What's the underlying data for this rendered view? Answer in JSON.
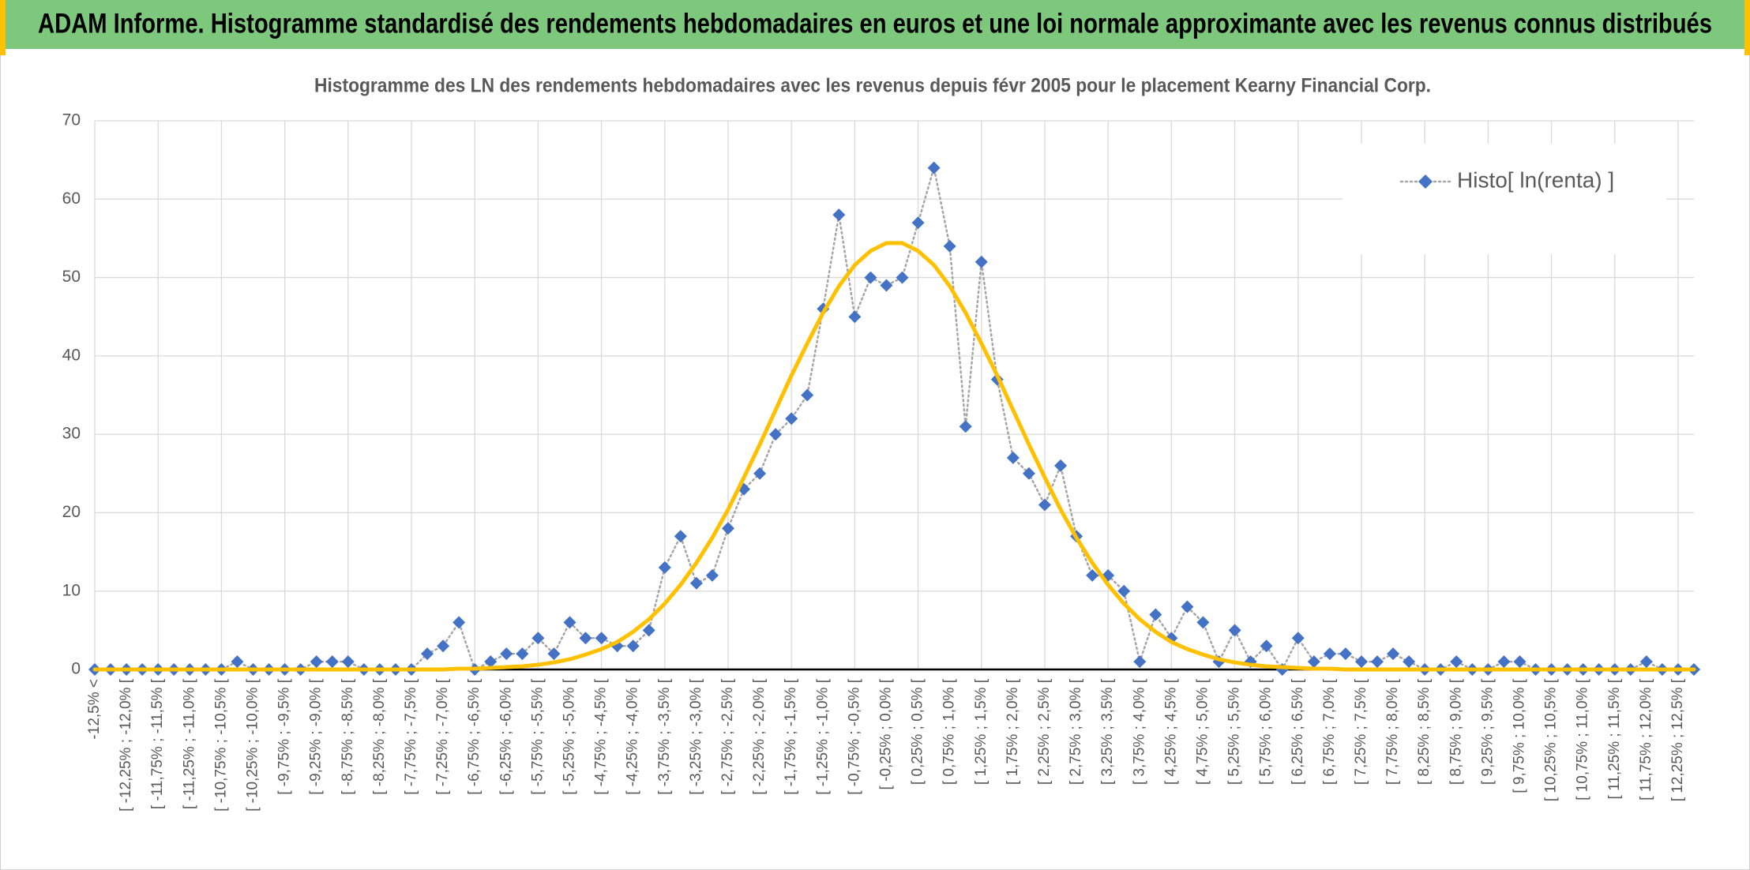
{
  "header": {
    "title": "ADAM Informe. Histogramme standardisé des rendements hebdomadaires en euros et une loi normale approximante avec les revenus connus distribués"
  },
  "chart_data": {
    "type": "line",
    "title": "Histogramme des LN des rendements hebdomadaires avec les revenus depuis févr 2005 pour le placement Kearny Financial Corp.",
    "categories": [
      "-12,5% <",
      null,
      "[ -12,25% ; -12,0% [",
      null,
      "[ -11,75% ; -11,5% [",
      null,
      "[ -11,25% ; -11,0% [",
      null,
      "[ -10,75% ; -10,5% [",
      null,
      "[ -10,25% ; -10,0% [",
      null,
      "[ -9,75% ; -9,5% [",
      null,
      "[ -9,25% ; -9,0% [",
      null,
      "[ -8,75% ; -8,5% [",
      null,
      "[ -8,25% ; -8,0% [",
      null,
      "[ -7,75% ; -7,5% [",
      null,
      "[ -7,25% ; -7,0% [",
      null,
      "[ -6,75% ; -6,5% [",
      null,
      "[ -6,25% ; -6,0% [",
      null,
      "[ -5,75% ; -5,5% [",
      null,
      "[ -5,25% ; -5,0% [",
      null,
      "[ -4,75% ; -4,5% [",
      null,
      "[ -4,25% ; -4,0% [",
      null,
      "[ -3,75% ; -3,5% [",
      null,
      "[ -3,25% ; -3,0% [",
      null,
      "[ -2,75% ; -2,5% [",
      null,
      "[ -2,25% ; -2,0% [",
      null,
      "[ -1,75% ; -1,5% [",
      null,
      "[ -1,25% ; -1,0% [",
      null,
      "[ -0,75% ; -0,5% [",
      null,
      "[ -0,25% ; 0,0% [",
      null,
      "[ 0,25% ; 0,5% [",
      null,
      "[ 0,75% ; 1,0% [",
      null,
      "[ 1,25% ; 1,5% [",
      null,
      "[ 1,75% ; 2,0% [",
      null,
      "[ 2,25% ; 2,5% [",
      null,
      "[ 2,75% ; 3,0% [",
      null,
      "[ 3,25% ; 3,5% [",
      null,
      "[ 3,75% ; 4,0% [",
      null,
      "[ 4,25% ; 4,5% [",
      null,
      "[ 4,75% ; 5,0% [",
      null,
      "[ 5,25% ; 5,5% [",
      null,
      "[ 5,75% ; 6,0% [",
      null,
      "[ 6,25% ; 6,5% [",
      null,
      "[ 6,75% ; 7,0% [",
      null,
      "[ 7,25% ; 7,5% [",
      null,
      "[ 7,75% ; 8,0% [",
      null,
      "[ 8,25% ; 8,5% [",
      null,
      "[ 8,75% ; 9,0% [",
      null,
      "[ 9,25% ; 9,5% [",
      null,
      "[ 9,75% ; 10,0% [",
      null,
      "[ 10,25% ; 10,5% [",
      null,
      "[ 10,75% ; 11,0% [",
      null,
      "[ 11,25% ; 11,5% [",
      null,
      "[ 11,75% ; 12,0% [",
      null,
      "[ 12,25% ; 12,5% [",
      null
    ],
    "series": [
      {
        "name": "Histo[ ln(renta) ]",
        "color": "#4472c4",
        "line_color": "#a5a5a5",
        "line_style": "dotted",
        "marker": "diamond",
        "values": [
          0,
          0,
          0,
          0,
          0,
          0,
          0,
          0,
          0,
          1,
          0,
          0,
          0,
          0,
          1,
          1,
          1,
          0,
          0,
          0,
          0,
          2,
          3,
          6,
          0,
          1,
          2,
          2,
          4,
          2,
          6,
          4,
          4,
          3,
          3,
          5,
          13,
          17,
          11,
          12,
          18,
          23,
          25,
          30,
          32,
          35,
          46,
          58,
          45,
          50,
          49,
          50,
          57,
          64,
          54,
          31,
          52,
          37,
          27,
          25,
          21,
          26,
          17,
          12,
          12,
          10,
          1,
          7,
          4,
          8,
          6,
          1,
          5,
          1,
          3,
          0,
          4,
          1,
          2,
          2,
          1,
          1,
          2,
          1,
          0,
          0,
          1,
          0,
          0,
          1,
          1,
          0,
          0,
          0,
          0,
          0,
          0,
          0,
          1,
          0,
          0,
          0
        ]
      },
      {
        "color": "#ffc000",
        "line_style": "solid",
        "marker": "none",
        "values": [
          0,
          0,
          0,
          0,
          0,
          0,
          0,
          0,
          0,
          0,
          0,
          0,
          0,
          0,
          0,
          0,
          0,
          0,
          0,
          0,
          0,
          0,
          0,
          0.1,
          0.1,
          0.2,
          0.3,
          0.4,
          0.6,
          0.9,
          1.3,
          1.9,
          2.6,
          3.5,
          4.8,
          6.4,
          8.4,
          10.8,
          13.6,
          16.8,
          20.4,
          24.5,
          28.7,
          33.1,
          37.5,
          41.6,
          45.5,
          48.9,
          51.6,
          53.4,
          54.4,
          54.4,
          53.4,
          51.6,
          48.9,
          45.5,
          41.6,
          37.5,
          33.1,
          28.7,
          24.5,
          20.4,
          16.8,
          13.6,
          10.8,
          8.4,
          6.4,
          4.8,
          3.5,
          2.6,
          1.9,
          1.3,
          0.9,
          0.6,
          0.4,
          0.3,
          0.2,
          0.1,
          0.1,
          0,
          0,
          0,
          0,
          0,
          0,
          0,
          0,
          0,
          0,
          0,
          0,
          0,
          0,
          0,
          0,
          0,
          0,
          0,
          0,
          0,
          0,
          0
        ]
      }
    ],
    "ylim": [
      0,
      70
    ],
    "yticks": [
      0,
      10,
      20,
      30,
      40,
      50,
      60,
      70
    ],
    "grid": true,
    "legend": "top-right"
  }
}
